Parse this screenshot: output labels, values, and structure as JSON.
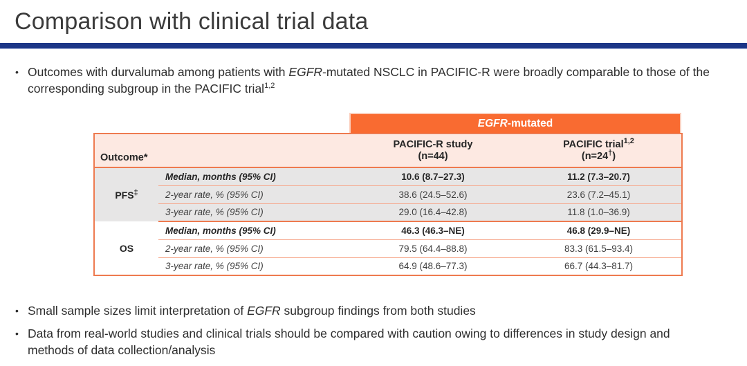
{
  "slide": {
    "title": "Comparison with clinical trial data",
    "colors": {
      "accent_blue": "#1C3687",
      "accent_orange": "#F96B31",
      "header_pink": "#FDE9E2",
      "row_grey": "#E7E6E6",
      "border_orange": "#EE7A4F"
    }
  },
  "bullets": {
    "marker": "•",
    "intro": {
      "part1": "Outcomes with durvalumab among patients with ",
      "gene": "EGFR",
      "part2": "-mutated NSCLC in PACIFIC-R were broadly comparable to those of the corresponding subgroup in the PACIFIC trial",
      "sup": "1,2"
    },
    "samples": {
      "part1": "Small sample sizes limit interpretation of ",
      "gene": "EGFR",
      "part2": " subgroup findings from both studies"
    },
    "caution": {
      "text": "Data from real-world studies and clinical trials should be compared with caution owing to differences in study design and methods of data collection/analysis"
    }
  },
  "table": {
    "banner": {
      "gene": "EGFR",
      "rest": "-mutated"
    },
    "columns": {
      "outcome": "Outcome*",
      "pacific_r_line1": "PACIFIC-R study",
      "pacific_r_line2": "(n=44)",
      "trial_line1": "PACIFIC trial",
      "trial_sup": "1,2",
      "trial_n_open": "(n=24",
      "trial_n_dagger": "†",
      "trial_n_close": ")"
    },
    "groups": [
      {
        "label": "PFS",
        "label_sup": "‡",
        "rows": [
          {
            "metric": "Median, months (95% CI)",
            "pacific_r": "10.6 (8.7–27.3)",
            "pacific_trial": "11.2 (7.3–20.7)"
          },
          {
            "metric": "2-year rate, % (95% CI)",
            "pacific_r": "38.6 (24.5–52.6)",
            "pacific_trial": "23.6 (7.2–45.1)"
          },
          {
            "metric": "3-year rate, % (95% CI)",
            "pacific_r": "29.0 (16.4–42.8)",
            "pacific_trial": "11.8 (1.0–36.9)"
          }
        ]
      },
      {
        "label": "OS",
        "label_sup": "",
        "rows": [
          {
            "metric": "Median, months (95% CI)",
            "pacific_r": "46.3 (46.3–NE)",
            "pacific_trial": "46.8 (29.9–NE)"
          },
          {
            "metric": "2-year rate, % (95% CI)",
            "pacific_r": "79.5 (64.4–88.8)",
            "pacific_trial": "83.3 (61.5–93.4)"
          },
          {
            "metric": "3-year rate, % (95% CI)",
            "pacific_r": "64.9 (48.6–77.3)",
            "pacific_trial": "66.7 (44.3–81.7)"
          }
        ]
      }
    ]
  }
}
